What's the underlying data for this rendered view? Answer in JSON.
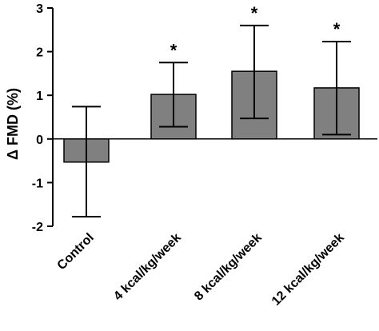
{
  "chart_data": {
    "type": "bar",
    "categories": [
      "Control",
      "4 kcal/kg/week",
      "8 kcal/kg/week",
      "12 kcal/kg/week"
    ],
    "values": [
      -0.53,
      1.02,
      1.55,
      1.17
    ],
    "error_upper": [
      0.74,
      1.75,
      2.6,
      2.23
    ],
    "error_lower": [
      -1.78,
      0.28,
      0.47,
      0.1
    ],
    "significance": [
      "",
      "*",
      "*",
      "*"
    ],
    "ylabel": "Δ FMD (%)",
    "ylim": [
      -2,
      3
    ],
    "yticks": [
      -2,
      -1,
      0,
      1,
      2,
      3
    ],
    "ytick_labels": [
      "-2",
      "-1",
      "0",
      "1",
      "2",
      "3"
    ],
    "bar_color": "#808080",
    "grid": false
  }
}
